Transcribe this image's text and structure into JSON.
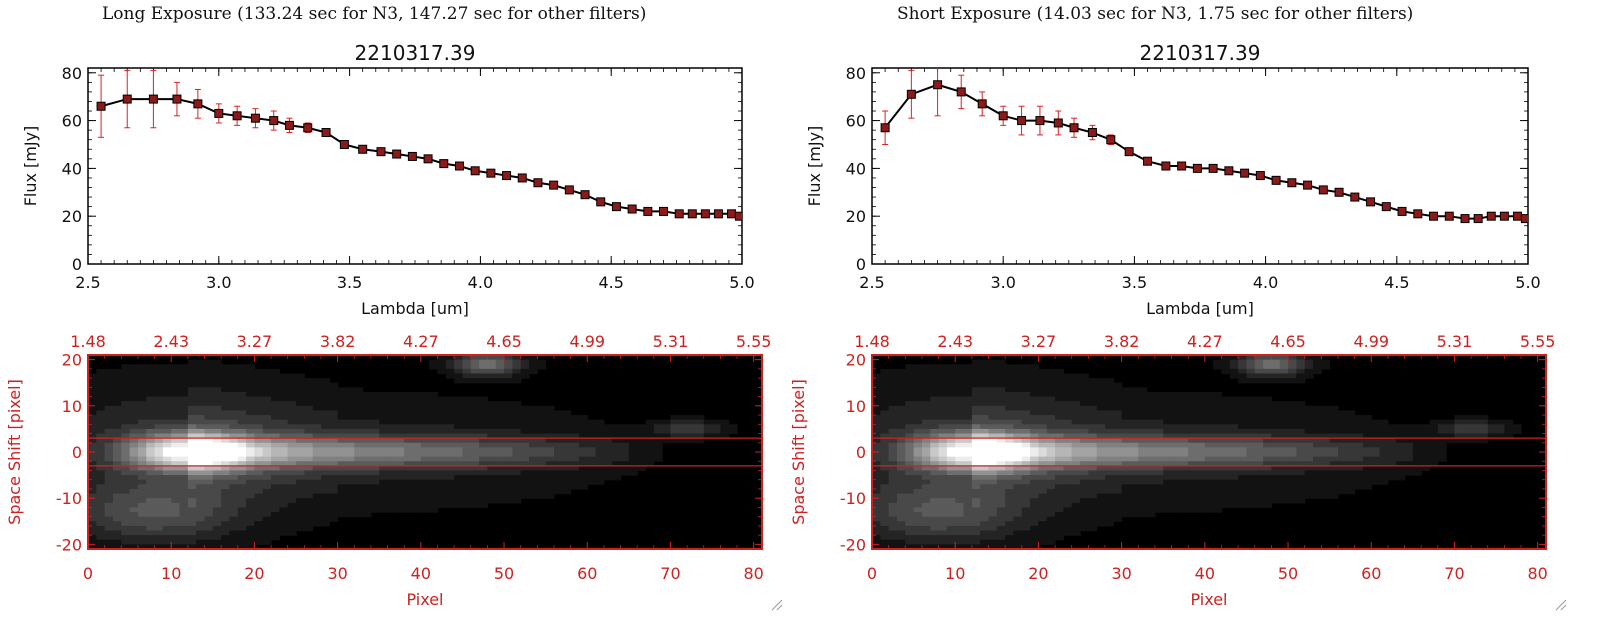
{
  "panels": [
    {
      "title": "Long Exposure (133.24 sec for N3, 147.27 sec for other filters)",
      "spectrum": {
        "title": "2210317.39",
        "xlabel": "Lambda [um]",
        "ylabel": "Flux [mJy]",
        "xlim": [
          2.5,
          5.0
        ],
        "ylim": [
          0,
          82
        ],
        "x_ticks": [
          "2.5",
          "3.0",
          "3.5",
          "4.0",
          "4.5",
          "5.0"
        ],
        "y_ticks": [
          "0",
          "20",
          "40",
          "60",
          "80"
        ]
      },
      "image": {
        "xlabel": "Pixel",
        "ylabel": "Space Shift [pixel]",
        "x_ticks": [
          "0",
          "10",
          "20",
          "30",
          "40",
          "50",
          "60",
          "70",
          "80"
        ],
        "y_ticks": [
          "-20",
          "-10",
          "0",
          "10",
          "20"
        ],
        "top_ticks": [
          "1.48",
          "2.43",
          "3.27",
          "3.82",
          "4.27",
          "4.65",
          "4.99",
          "5.31",
          "5.55"
        ]
      }
    },
    {
      "title": "Short Exposure (14.03 sec for N3, 1.75 sec for other filters)",
      "spectrum": {
        "title": "2210317.39",
        "xlabel": "Lambda [um]",
        "ylabel": "Flux [mJy]",
        "xlim": [
          2.5,
          5.0
        ],
        "ylim": [
          0,
          82
        ],
        "x_ticks": [
          "2.5",
          "3.0",
          "3.5",
          "4.0",
          "4.5",
          "5.0"
        ],
        "y_ticks": [
          "0",
          "20",
          "40",
          "60",
          "80"
        ]
      },
      "image": {
        "xlabel": "Pixel",
        "ylabel": "Space Shift [pixel]",
        "x_ticks": [
          "0",
          "10",
          "20",
          "30",
          "40",
          "50",
          "60",
          "70",
          "80"
        ],
        "y_ticks": [
          "-20",
          "-10",
          "0",
          "10",
          "20"
        ],
        "top_ticks": [
          "1.48",
          "2.43",
          "3.27",
          "3.82",
          "4.27",
          "4.65",
          "4.99",
          "5.31",
          "5.55"
        ]
      }
    }
  ],
  "colors": {
    "axis_red": "#cc2222",
    "error_bar": "#dd2222",
    "marker": "#8b1a1a",
    "line": "#000000"
  },
  "chart_data": [
    {
      "type": "line",
      "title": "2210317.39",
      "xlabel": "Lambda [um]",
      "ylabel": "Flux [mJy]",
      "xlim": [
        2.5,
        5.0
      ],
      "ylim": [
        0,
        82
      ],
      "x": [
        2.55,
        2.65,
        2.75,
        2.84,
        2.92,
        3.0,
        3.07,
        3.14,
        3.21,
        3.27,
        3.34,
        3.41,
        3.48,
        3.55,
        3.62,
        3.68,
        3.74,
        3.8,
        3.86,
        3.92,
        3.98,
        4.04,
        4.1,
        4.16,
        4.22,
        4.28,
        4.34,
        4.4,
        4.46,
        4.52,
        4.58,
        4.64,
        4.7,
        4.76,
        4.81,
        4.86,
        4.91,
        4.96,
        4.99
      ],
      "y": [
        66,
        69,
        69,
        69,
        67,
        63,
        62,
        61,
        60,
        58,
        57,
        55,
        50,
        48,
        47,
        46,
        45,
        44,
        42,
        41,
        39,
        38,
        37,
        36,
        34,
        33,
        31,
        29,
        26,
        24,
        23,
        22,
        22,
        21,
        21,
        21,
        21,
        21,
        20
      ],
      "yerr": [
        13,
        12,
        12,
        7,
        6,
        4,
        4,
        4,
        4,
        3,
        2,
        1,
        1,
        1,
        1,
        1,
        1,
        1,
        1,
        1,
        1,
        1,
        1,
        1,
        1,
        1,
        1,
        1,
        1,
        1,
        1,
        1,
        1,
        1,
        1,
        1,
        1,
        1,
        1
      ]
    },
    {
      "type": "line",
      "title": "2210317.39",
      "xlabel": "Lambda [um]",
      "ylabel": "Flux [mJy]",
      "xlim": [
        2.5,
        5.0
      ],
      "ylim": [
        0,
        82
      ],
      "x": [
        2.55,
        2.65,
        2.75,
        2.84,
        2.92,
        3.0,
        3.07,
        3.14,
        3.21,
        3.27,
        3.34,
        3.41,
        3.48,
        3.55,
        3.62,
        3.68,
        3.74,
        3.8,
        3.86,
        3.92,
        3.98,
        4.04,
        4.1,
        4.16,
        4.22,
        4.28,
        4.34,
        4.4,
        4.46,
        4.52,
        4.58,
        4.64,
        4.7,
        4.76,
        4.81,
        4.86,
        4.91,
        4.96,
        4.99
      ],
      "y": [
        57,
        71,
        75,
        72,
        67,
        62,
        60,
        60,
        59,
        57,
        55,
        52,
        47,
        43,
        41,
        41,
        40,
        40,
        39,
        38,
        37,
        35,
        34,
        33,
        31,
        30,
        28,
        26,
        24,
        22,
        21,
        20,
        20,
        19,
        19,
        20,
        20,
        20,
        19
      ],
      "yerr": [
        7,
        10,
        13,
        7,
        5,
        4,
        6,
        6,
        5,
        4,
        3,
        2,
        1,
        1,
        1,
        1,
        1,
        1,
        1,
        1,
        1,
        1,
        1,
        1,
        1,
        1,
        1,
        1,
        1,
        1,
        1,
        1,
        1,
        1,
        1,
        1,
        1,
        1,
        1
      ]
    },
    {
      "type": "heatmap",
      "xlabel": "Pixel",
      "ylabel": "Space Shift [pixel]",
      "xlim": [
        0,
        81
      ],
      "ylim": [
        -21,
        21
      ],
      "aperture_lines_y": [
        3,
        -3
      ],
      "sources": [
        {
          "x": 12,
          "y": 0,
          "peak": 1.0,
          "sigma_x": 4.5,
          "sigma_y": 2.5
        },
        {
          "x": 48,
          "y": 19,
          "peak": 0.35,
          "sigma_x": 2.5,
          "sigma_y": 1.5
        },
        {
          "x": 8,
          "y": -13,
          "peak": 0.2,
          "sigma_x": 6,
          "sigma_y": 4
        },
        {
          "x": 72,
          "y": 5,
          "peak": 0.15,
          "sigma_x": 2.5,
          "sigma_y": 1.2
        }
      ],
      "trail_end_x": 70
    },
    {
      "type": "heatmap",
      "xlabel": "Pixel",
      "ylabel": "Space Shift [pixel]",
      "xlim": [
        0,
        81
      ],
      "ylim": [
        -21,
        21
      ],
      "aperture_lines_y": [
        3,
        -3
      ],
      "sources": [
        {
          "x": 12,
          "y": 0,
          "peak": 1.0,
          "sigma_x": 4.5,
          "sigma_y": 2.5
        },
        {
          "x": 48,
          "y": 19,
          "peak": 0.35,
          "sigma_x": 2.5,
          "sigma_y": 1.5
        },
        {
          "x": 8,
          "y": -13,
          "peak": 0.2,
          "sigma_x": 6,
          "sigma_y": 4
        },
        {
          "x": 72,
          "y": 5,
          "peak": 0.15,
          "sigma_x": 2.5,
          "sigma_y": 1.2
        }
      ],
      "trail_end_x": 70
    }
  ]
}
